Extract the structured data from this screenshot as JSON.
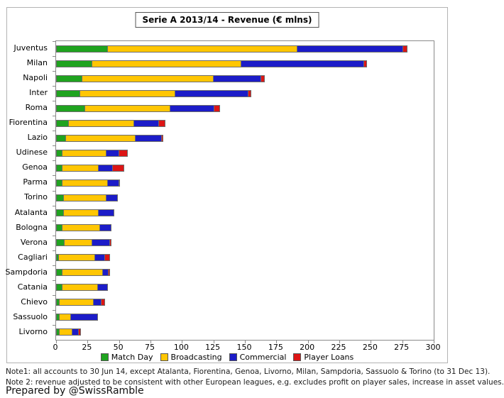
{
  "title": "Serie A 2013/14 - Revenue (€ mlns)",
  "notes": {
    "note1": "Note1: all accounts to 30 Jun 14, except Atalanta, Fiorentina, Genoa, Livorno, Milan, Sampdoria, Sassuolo & Torino (to 31 Dec 13).",
    "note2": "Note 2: revenue adjusted to be consistent with other European leagues, e.g. excludes profit on player sales, increase in asset values.",
    "prepared_by": "Prepared by @SwissRamble"
  },
  "chart_data": {
    "type": "bar",
    "orientation": "horizontal",
    "stacked": true,
    "title": "Serie A 2013/14 - Revenue (€ mlns)",
    "xlabel": "",
    "ylabel": "",
    "xlim": [
      0,
      300
    ],
    "x_ticks": [
      0,
      25,
      50,
      75,
      100,
      125,
      150,
      175,
      200,
      225,
      250,
      275,
      300
    ],
    "grid": false,
    "legend_position": "bottom",
    "categories": [
      "Juventus",
      "Milan",
      "Napoli",
      "Inter",
      "Roma",
      "Fiorentina",
      "Lazio",
      "Udinese",
      "Genoa",
      "Parma",
      "Torino",
      "Atalanta",
      "Bologna",
      "Verona",
      "Cagliari",
      "Sampdoria",
      "Catania",
      "Chievo",
      "Sassuolo",
      "Livorno"
    ],
    "series": [
      {
        "name": "Match Day",
        "color": "#1fa31f",
        "values": [
          41,
          29,
          21,
          19,
          23,
          10,
          8,
          5,
          5,
          5,
          6,
          6,
          5,
          7,
          2,
          5,
          5,
          3,
          3,
          3
        ]
      },
      {
        "name": "Broadcasting",
        "color": "#ffc603",
        "values": [
          151,
          118,
          104,
          76,
          68,
          52,
          55,
          35,
          29,
          36,
          34,
          28,
          30,
          22,
          29,
          32,
          28,
          27,
          9,
          10
        ]
      },
      {
        "name": "Commercial",
        "color": "#1c1cc8",
        "values": [
          84,
          98,
          38,
          58,
          35,
          20,
          21,
          10,
          11,
          9,
          9,
          12,
          9,
          14,
          8,
          5,
          8,
          6,
          21,
          5
        ]
      },
      {
        "name": "Player Loans",
        "color": "#dd1515",
        "values": [
          3,
          2,
          3,
          2,
          4,
          5,
          1,
          7,
          9,
          1,
          0,
          0,
          0,
          1,
          4,
          1,
          0,
          3,
          0,
          2
        ]
      }
    ],
    "totals": [
      279,
      247,
      166,
      155,
      130,
      87,
      85,
      57,
      54,
      51,
      49,
      46,
      44,
      44,
      43,
      43,
      41,
      39,
      33,
      20
    ]
  }
}
